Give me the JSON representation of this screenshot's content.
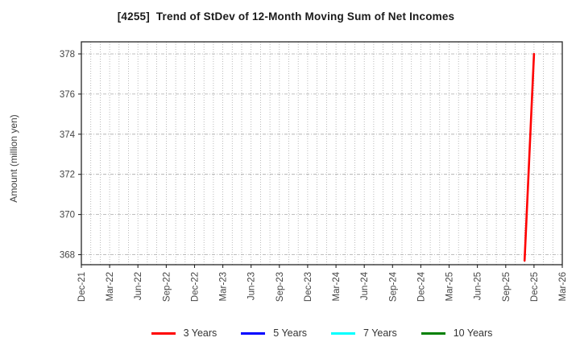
{
  "title": "[4255]  Trend of StDev of 12-Month Moving Sum of Net Incomes",
  "y_axis": {
    "label": "Amount (million yen)",
    "ticks": [
      368,
      370,
      372,
      374,
      376,
      378
    ]
  },
  "x_axis": {
    "tick_labels": [
      "Dec-21",
      "Mar-22",
      "Jun-22",
      "Sep-22",
      "Dec-22",
      "Mar-23",
      "Jun-23",
      "Sep-23",
      "Dec-23",
      "Mar-24",
      "Jun-24",
      "Sep-24",
      "Dec-24",
      "Mar-25",
      "Jun-25",
      "Sep-25",
      "Dec-25",
      "Mar-26"
    ]
  },
  "legend": [
    {
      "label": "3 Years",
      "color": "#ff0000"
    },
    {
      "label": "5 Years",
      "color": "#0000ff"
    },
    {
      "label": "7 Years",
      "color": "#00ffff"
    },
    {
      "label": "10 Years",
      "color": "#008000"
    }
  ],
  "chart_data": {
    "type": "line",
    "title": "[4255]  Trend of StDev of 12-Month Moving Sum of Net Incomes",
    "xlabel": "",
    "ylabel": "Amount (million yen)",
    "ylim": [
      367.5,
      378.6
    ],
    "yticks": [
      368,
      370,
      372,
      374,
      376,
      378
    ],
    "x_start": "Dec-21",
    "x_end": "Mar-26",
    "x_tick_labels": [
      "Dec-21",
      "Mar-22",
      "Jun-22",
      "Sep-22",
      "Dec-22",
      "Mar-23",
      "Jun-23",
      "Sep-23",
      "Dec-23",
      "Mar-24",
      "Jun-24",
      "Sep-24",
      "Dec-24",
      "Mar-25",
      "Jun-25",
      "Sep-25",
      "Dec-25",
      "Mar-26"
    ],
    "grid": true,
    "minor_x_grid_unit": "month",
    "legend_position": "bottom",
    "series": [
      {
        "name": "3 Years",
        "color": "#ff0000",
        "points": [
          {
            "x": "Nov-25",
            "y": 367.7
          },
          {
            "x": "Dec-25",
            "y": 378.0
          }
        ]
      },
      {
        "name": "5 Years",
        "color": "#0000ff",
        "points": []
      },
      {
        "name": "7 Years",
        "color": "#00ffff",
        "points": []
      },
      {
        "name": "10 Years",
        "color": "#008000",
        "points": []
      }
    ]
  }
}
